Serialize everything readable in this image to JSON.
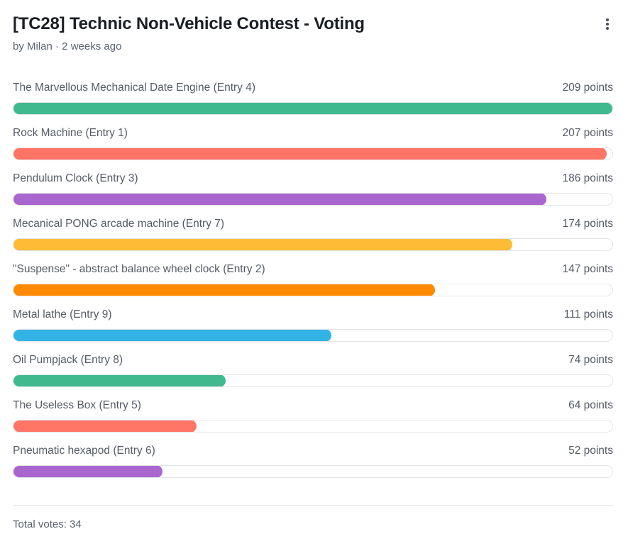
{
  "poll": {
    "title": "[TC28] Technic Non-Vehicle Contest - Voting",
    "meta": "by Milan · 2 weeks ago",
    "total_votes": "Total votes: 34",
    "max_points": 209,
    "options": [
      {
        "label": "The Marvellous Mechanical Date Engine (Entry 4)",
        "points": 209,
        "points_text": "209 points",
        "color": "#40b98f"
      },
      {
        "label": "Rock Machine (Entry 1)",
        "points": 207,
        "points_text": "207 points",
        "color": "#ff7464"
      },
      {
        "label": "Pendulum Clock (Entry 3)",
        "points": 186,
        "points_text": "186 points",
        "color": "#a966cf"
      },
      {
        "label": "Mecanical PONG arcade machine (Entry 7)",
        "points": 174,
        "points_text": "174 points",
        "color": "#fdbb36"
      },
      {
        "label": "\"Suspense\" - abstract balance wheel clock (Entry 2)",
        "points": 147,
        "points_text": "147 points",
        "color": "#ff8a00"
      },
      {
        "label": "Metal lathe (Entry 9)",
        "points": 111,
        "points_text": "111 points",
        "color": "#33b2e6"
      },
      {
        "label": "Oil Pumpjack (Entry 8)",
        "points": 74,
        "points_text": "74 points",
        "color": "#40b98f"
      },
      {
        "label": "The Useless Box (Entry 5)",
        "points": 64,
        "points_text": "64 points",
        "color": "#ff7464"
      },
      {
        "label": "Pneumatic hexapod (Entry 6)",
        "points": 52,
        "points_text": "52 points",
        "color": "#a966cf"
      }
    ]
  },
  "icons": {
    "menu": "more-vertical-icon"
  }
}
